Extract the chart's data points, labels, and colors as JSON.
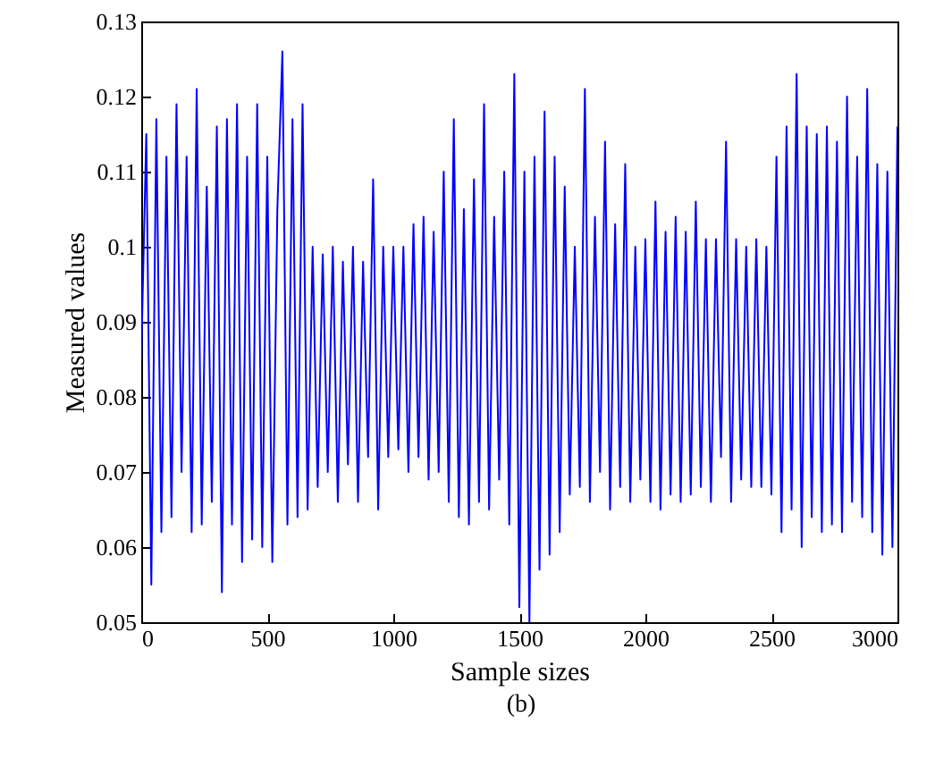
{
  "chart_data": {
    "type": "line",
    "xlabel": "Sample sizes",
    "ylabel": "Measured values",
    "annotations": [
      "(b)"
    ],
    "x": [
      0,
      20,
      40,
      60,
      80,
      100,
      120,
      140,
      160,
      180,
      200,
      220,
      240,
      260,
      280,
      300,
      320,
      340,
      360,
      380,
      400,
      420,
      440,
      460,
      480,
      500,
      520,
      540,
      560,
      580,
      600,
      620,
      640,
      660,
      680,
      700,
      720,
      740,
      760,
      780,
      800,
      820,
      840,
      860,
      880,
      900,
      920,
      940,
      960,
      980,
      1000,
      1020,
      1040,
      1060,
      1080,
      1100,
      1120,
      1140,
      1160,
      1180,
      1200,
      1220,
      1240,
      1260,
      1280,
      1300,
      1320,
      1340,
      1360,
      1380,
      1400,
      1420,
      1440,
      1460,
      1480,
      1500,
      1520,
      1540,
      1560,
      1580,
      1600,
      1620,
      1640,
      1660,
      1680,
      1700,
      1720,
      1740,
      1760,
      1780,
      1800,
      1820,
      1840,
      1860,
      1880,
      1900,
      1920,
      1940,
      1960,
      1980,
      2000,
      2020,
      2040,
      2060,
      2080,
      2100,
      2120,
      2140,
      2160,
      2180,
      2200,
      2220,
      2240,
      2260,
      2280,
      2300,
      2320,
      2340,
      2360,
      2380,
      2400,
      2420,
      2440,
      2460,
      2480,
      2500,
      2520,
      2540,
      2560,
      2580,
      2600,
      2620,
      2640,
      2660,
      2680,
      2700,
      2720,
      2740,
      2760,
      2780,
      2800,
      2820,
      2840,
      2860,
      2880,
      2900,
      2920,
      2940,
      2960,
      2980,
      3000
    ],
    "series": [
      {
        "color": "#0000ff",
        "values": [
          0.085,
          0.115,
          0.055,
          0.117,
          0.062,
          0.112,
          0.064,
          0.119,
          0.07,
          0.112,
          0.062,
          0.121,
          0.063,
          0.108,
          0.066,
          0.116,
          0.054,
          0.117,
          0.063,
          0.119,
          0.058,
          0.112,
          0.061,
          0.119,
          0.06,
          0.112,
          0.058,
          0.105,
          0.126,
          0.063,
          0.117,
          0.064,
          0.119,
          0.065,
          0.1,
          0.068,
          0.099,
          0.07,
          0.1,
          0.066,
          0.098,
          0.071,
          0.1,
          0.066,
          0.098,
          0.072,
          0.109,
          0.065,
          0.1,
          0.072,
          0.1,
          0.073,
          0.1,
          0.07,
          0.103,
          0.072,
          0.104,
          0.069,
          0.102,
          0.07,
          0.11,
          0.066,
          0.117,
          0.064,
          0.105,
          0.063,
          0.109,
          0.066,
          0.119,
          0.065,
          0.104,
          0.069,
          0.11,
          0.063,
          0.123,
          0.052,
          0.11,
          0.05,
          0.112,
          0.057,
          0.118,
          0.059,
          0.112,
          0.062,
          0.108,
          0.067,
          0.1,
          0.068,
          0.121,
          0.066,
          0.104,
          0.07,
          0.114,
          0.065,
          0.103,
          0.068,
          0.111,
          0.066,
          0.1,
          0.069,
          0.101,
          0.066,
          0.106,
          0.065,
          0.102,
          0.067,
          0.104,
          0.066,
          0.102,
          0.067,
          0.106,
          0.068,
          0.101,
          0.066,
          0.101,
          0.072,
          0.114,
          0.066,
          0.101,
          0.069,
          0.1,
          0.068,
          0.101,
          0.068,
          0.1,
          0.067,
          0.112,
          0.062,
          0.116,
          0.065,
          0.123,
          0.06,
          0.116,
          0.064,
          0.115,
          0.062,
          0.116,
          0.063,
          0.114,
          0.062,
          0.12,
          0.066,
          0.112,
          0.064,
          0.121,
          0.062,
          0.111,
          0.059,
          0.11,
          0.06,
          0.116
        ]
      }
    ],
    "xlim": [
      0,
      3000
    ],
    "xticks": [
      0,
      500,
      1000,
      1500,
      2000,
      2500,
      3000
    ],
    "ylim": [
      0.05,
      0.13
    ],
    "yticks": [
      0.05,
      0.06,
      0.07,
      0.08,
      0.09,
      0.1,
      0.11,
      0.12,
      0.13
    ],
    "grid": false,
    "legend": false
  }
}
